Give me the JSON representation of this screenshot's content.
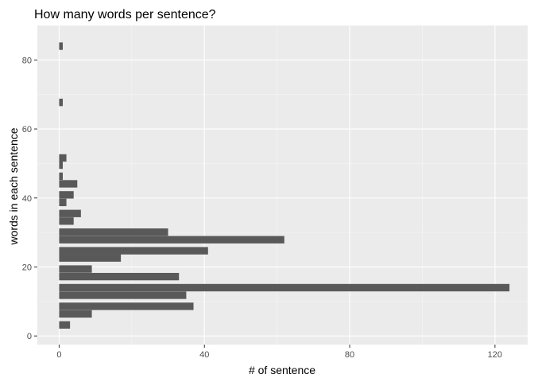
{
  "chart_data": {
    "type": "bar",
    "orientation": "horizontal",
    "title": "How many words per sentence?",
    "xlabel": "# of sentence",
    "ylabel": "words in each sentence",
    "xlim": [
      -6,
      129
    ],
    "ylim": [
      -2.5,
      90
    ],
    "xticks": [
      0,
      40,
      80,
      120
    ],
    "yticks": [
      0,
      20,
      40,
      60,
      80
    ],
    "grid": true,
    "legend": "none",
    "bin_width": 2.15,
    "bins": [
      {
        "y": 3.2,
        "count": 3
      },
      {
        "y": 6.4,
        "count": 9
      },
      {
        "y": 8.6,
        "count": 37
      },
      {
        "y": 11.8,
        "count": 35
      },
      {
        "y": 14.0,
        "count": 124
      },
      {
        "y": 17.2,
        "count": 33
      },
      {
        "y": 19.4,
        "count": 9
      },
      {
        "y": 22.6,
        "count": 17
      },
      {
        "y": 24.7,
        "count": 41
      },
      {
        "y": 27.9,
        "count": 62
      },
      {
        "y": 30.1,
        "count": 30
      },
      {
        "y": 33.3,
        "count": 4
      },
      {
        "y": 35.5,
        "count": 6
      },
      {
        "y": 38.7,
        "count": 2
      },
      {
        "y": 40.9,
        "count": 4
      },
      {
        "y": 44.1,
        "count": 5
      },
      {
        "y": 46.3,
        "count": 1
      },
      {
        "y": 49.5,
        "count": 1
      },
      {
        "y": 51.6,
        "count": 2
      },
      {
        "y": 67.7,
        "count": 1
      },
      {
        "y": 84.0,
        "count": 1
      }
    ],
    "colors": {
      "bar": "#595959",
      "panel": "#ebebeb",
      "grid_major": "#ffffff",
      "grid_minor": "#f5f5f5",
      "tick": "#333333"
    }
  }
}
